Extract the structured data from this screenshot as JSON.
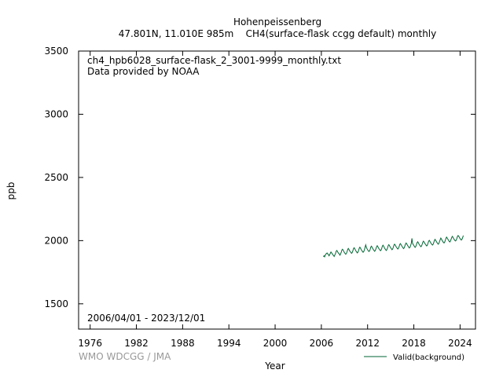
{
  "title": "Hohenpeissenberg",
  "subtitle": "47.801N, 11.010E 985m    CH4(surface-flask ccgg default) monthly",
  "file_label": "ch4_hpb6028_surface-flask_2_3001-9999_monthly.txt",
  "provider_label": "Data provided by NOAA",
  "date_range_label": "2006/04/01 - 2023/12/01",
  "credit": "WMO WDCGG / JMA",
  "colors": {
    "series": "#006633",
    "credit": "#999999",
    "axis": "#000000"
  },
  "chart_data": {
    "type": "line",
    "title": "Hohenpeissenberg",
    "xlabel": "Year",
    "ylabel": "ppb",
    "xlim": [
      1974.5,
      2026.0
    ],
    "ylim": [
      1300,
      3500
    ],
    "xticks": [
      1976,
      1982,
      1988,
      1994,
      2000,
      2006,
      2012,
      2018,
      2024
    ],
    "yticks": [
      1500,
      2000,
      2500,
      3000,
      3500
    ],
    "grid": false,
    "legend": "bottom-right",
    "series": [
      {
        "name": "Valid(background)",
        "color": "#006633",
        "x_start": "2006/04/01",
        "x_end": "2023/12/01",
        "values": [
          1874,
          1880,
          1872,
          1885,
          1893,
          1898,
          1902,
          1895,
          1888,
          1880,
          1890,
          1900,
          1910,
          1903,
          1895,
          1887,
          1882,
          1875,
          1886,
          1898,
          1915,
          1922,
          1916,
          1905,
          1900,
          1893,
          1885,
          1896,
          1908,
          1926,
          1932,
          1924,
          1913,
          1905,
          1898,
          1892,
          1900,
          1912,
          1930,
          1938,
          1930,
          1920,
          1912,
          1906,
          1899,
          1905,
          1918,
          1936,
          1944,
          1936,
          1925,
          1917,
          1910,
          1903,
          1909,
          1922,
          1940,
          1948,
          1940,
          1930,
          1921,
          1914,
          1908,
          1913,
          1926,
          1945,
          1966,
          1948,
          1936,
          1928,
          1920,
          1914,
          1918,
          1931,
          1949,
          1956,
          1948,
          1937,
          1929,
          1922,
          1916,
          1922,
          1935,
          1952,
          1960,
          1952,
          1942,
          1934,
          1927,
          1920,
          1926,
          1938,
          1956,
          1964,
          1956,
          1945,
          1936,
          1929,
          1922,
          1928,
          1942,
          1960,
          1968,
          1961,
          1951,
          1943,
          1935,
          1928,
          1934,
          1947,
          1964,
          1972,
          1965,
          1955,
          1947,
          1940,
          1933,
          1939,
          1952,
          1969,
          1976,
          1969,
          1960,
          1952,
          1944,
          1937,
          1943,
          1957,
          1973,
          1981,
          1974,
          1964,
          1956,
          1948,
          1942,
          1948,
          1962,
          1978,
          2018,
          1980,
          1970,
          1961,
          1953,
          1947,
          1953,
          1967,
          1983,
          1991,
          1983,
          1973,
          1965,
          1958,
          1952,
          1958,
          1972,
          1988,
          1996,
          1989,
          1979,
          1971,
          1964,
          1958,
          1964,
          1978,
          1994,
          2002,
          1995,
          1985,
          1977,
          1970,
          1965,
          1971,
          1985,
          2001,
          2010,
          2003,
          1993,
          1985,
          1978,
          1972,
          1978,
          1992,
          2008,
          2020,
          2012,
          2002,
          1994,
          1987,
          1981,
          1988,
          2002,
          2018,
          2028,
          2020,
          2011,
          2002,
          1995,
          1989,
          1996,
          2010,
          2026,
          2034,
          2026,
          2016,
          2008,
          2001,
          1997,
          2004,
          2018,
          2034,
          2040,
          2034,
          2024,
          2016,
          2009,
          2005,
          2011,
          2024,
          2040
        ]
      }
    ]
  }
}
